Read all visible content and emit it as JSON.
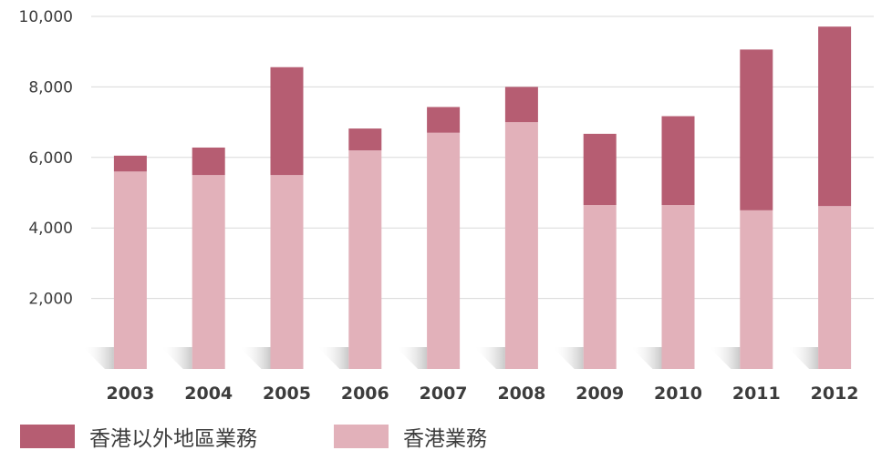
{
  "chart_data": {
    "type": "bar",
    "stacked": true,
    "categories": [
      "2003",
      "2004",
      "2005",
      "2006",
      "2007",
      "2008",
      "2009",
      "2010",
      "2011",
      "2012"
    ],
    "series": [
      {
        "name": "香港業務",
        "color": "#e2b1ba",
        "values": [
          5600,
          5500,
          5500,
          6200,
          6700,
          7000,
          4650,
          4650,
          4500,
          4620
        ]
      },
      {
        "name": "香港以外地區業務",
        "color": "#b65d72",
        "values": [
          450,
          780,
          3060,
          620,
          730,
          1000,
          2020,
          2520,
          4560,
          5090
        ]
      }
    ],
    "y_ticks": [
      "2,000",
      "4,000",
      "6,000",
      "8,000",
      "10,000"
    ],
    "y_tick_values": [
      2000,
      4000,
      6000,
      8000,
      10000
    ],
    "ylim": [
      0,
      10000
    ],
    "grid": true,
    "legend_position": "bottom-left",
    "title": "",
    "xlabel": "",
    "ylabel": ""
  }
}
